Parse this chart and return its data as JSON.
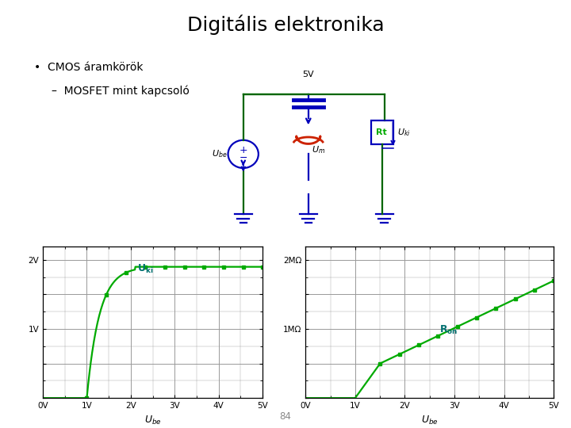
{
  "title": "Digitális elektronika",
  "bullet1": "CMOS áramkörök",
  "bullet2": "MOSFET mint kapcsoló",
  "supply_label": "5V",
  "page_number": "84",
  "green_color": "#00aa00",
  "blue_color": "#0000bb",
  "dark_green_wire": "#006600",
  "red_color": "#cc2200",
  "teal_color": "#007070",
  "grid_color": "#999999",
  "bg_color": "#ffffff",
  "graph1_xticks": [
    0,
    1,
    2,
    3,
    4,
    5
  ],
  "graph1_xlabels": [
    "0V",
    "1V",
    "2V",
    "3V",
    "4V",
    "5V"
  ],
  "graph1_yticks": [
    0,
    0.5,
    1.0,
    1.5,
    2.0
  ],
  "graph1_ylabels": [
    "",
    "",
    "1V",
    "",
    "2V"
  ],
  "graph2_xticks": [
    0,
    1,
    2,
    3,
    4,
    5
  ],
  "graph2_xlabels": [
    "0V",
    "1V",
    "2V",
    "3V",
    "4V",
    "5V"
  ],
  "graph2_yticks": [
    0,
    500000,
    1000000,
    1500000,
    2000000
  ],
  "graph2_ylabels": [
    "",
    "",
    "1MΩ",
    "",
    "2MΩ"
  ]
}
